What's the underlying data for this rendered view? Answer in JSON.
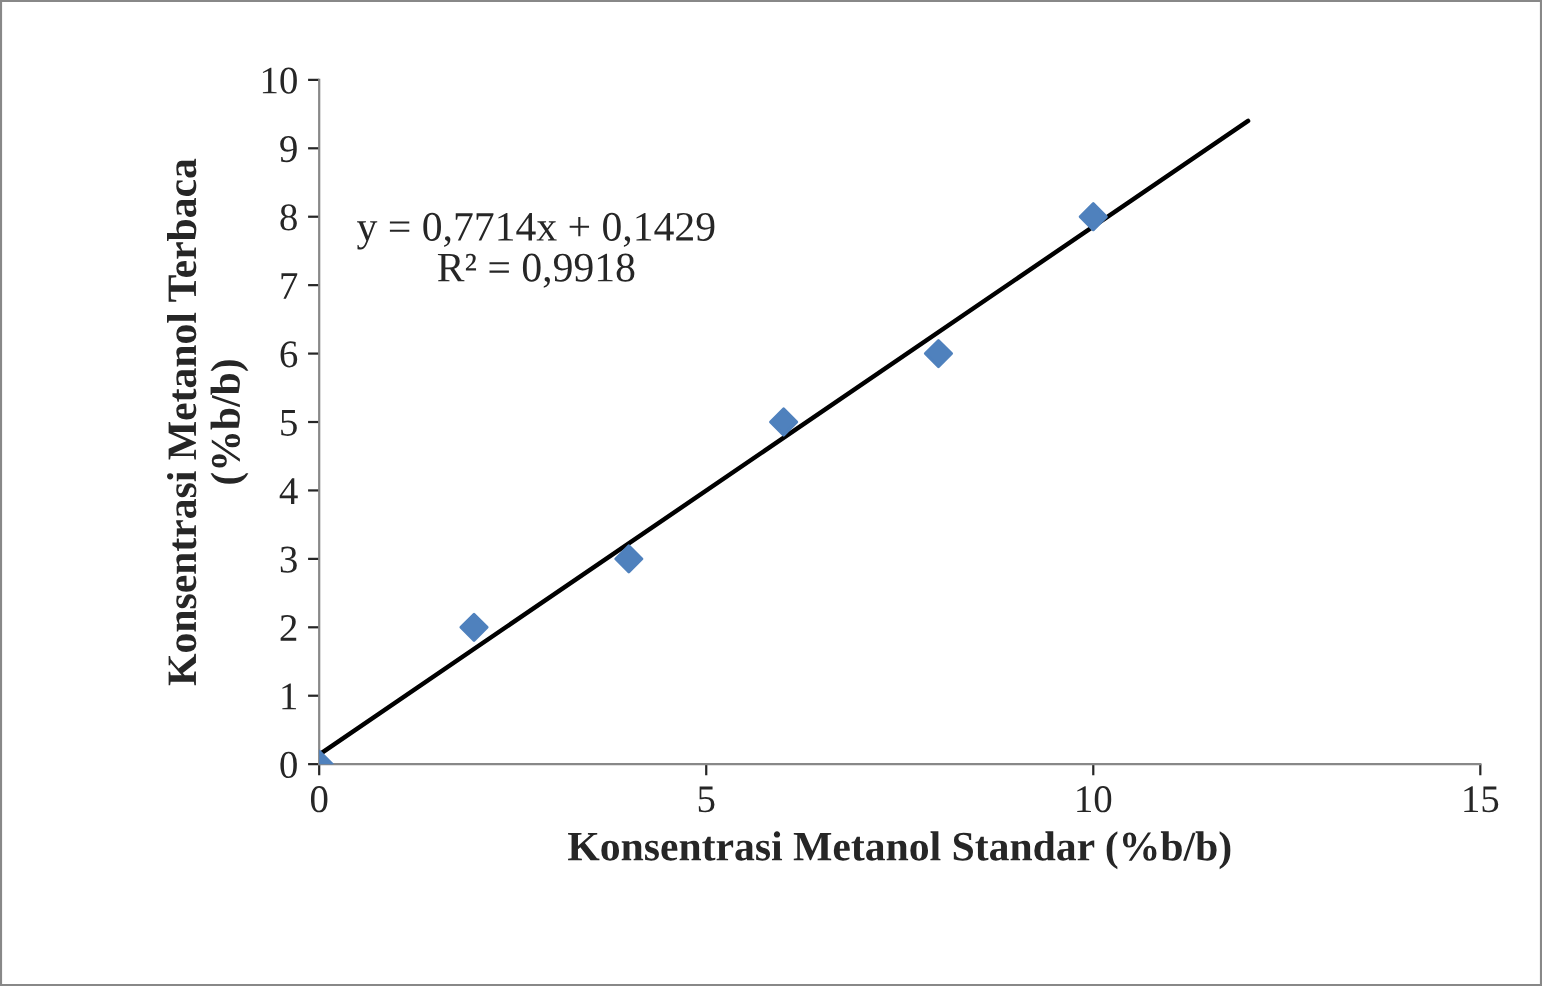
{
  "chart_data": {
    "type": "scatter",
    "xlabel": "Konsentrasi Metanol Standar (%b/b)",
    "ylabel": "Konsentrasi Metanol Terbaca\n(%b/b)",
    "x": [
      0,
      2,
      4,
      6,
      8,
      10
    ],
    "series": [
      {
        "color": "#4f81bd",
        "marker": "diamond",
        "values": [
          0,
          2,
          3,
          5,
          6,
          8
        ]
      },
      {
        "type": "line",
        "color": "#000000",
        "x": [
          0,
          12
        ],
        "values": [
          0.14,
          9.4
        ],
        "marker": "none",
        "line_style": "solid"
      }
    ],
    "annotations": [
      "y = 0,7714x + 0,1429\nR² = 0,9918"
    ],
    "xlim": [
      0,
      15
    ],
    "xticks": [
      0,
      5,
      10,
      15
    ],
    "ylim": [
      0,
      10
    ],
    "yticks": [
      0,
      1,
      2,
      3,
      4,
      5,
      6,
      7,
      8,
      9,
      10
    ],
    "grid": false,
    "legend": false
  }
}
